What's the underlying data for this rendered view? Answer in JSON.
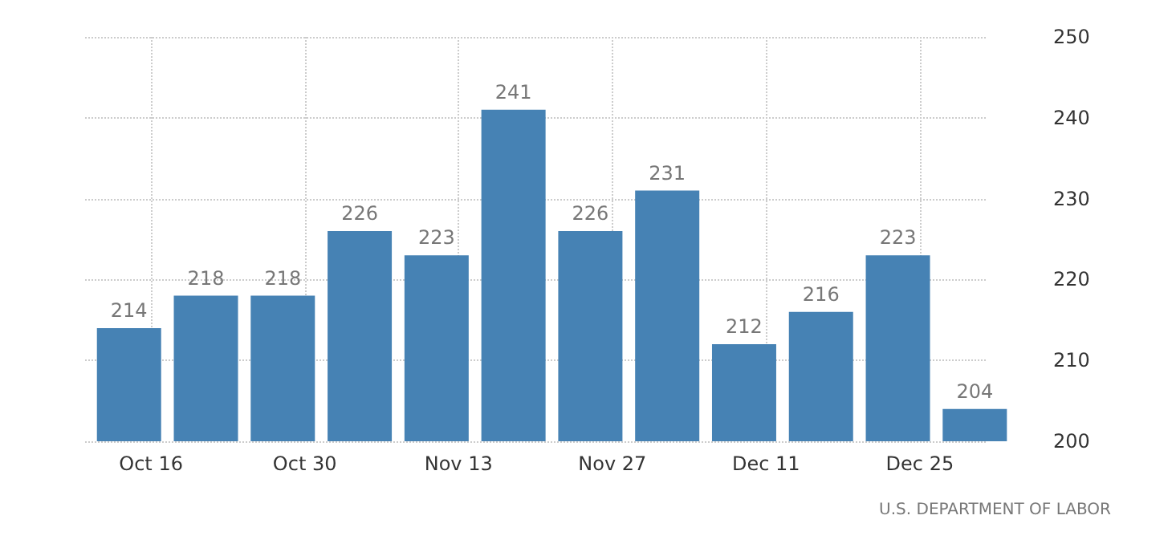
{
  "chart_data": {
    "type": "bar",
    "x": [
      "--10-14",
      "--10-21",
      "--10-28",
      "--11-04",
      "--11-11",
      "--11-18",
      "--11-25",
      "--12-02",
      "--12-09",
      "--12-16",
      "--12-23",
      "--12-30"
    ],
    "series": [
      {
        "color": "#4682b4",
        "values": [
          214,
          218,
          218,
          226,
          223,
          241,
          226,
          231,
          212,
          216,
          223,
          204
        ]
      }
    ],
    "xlim": [
      "--10-10",
      "--12-31"
    ],
    "xticks": [
      {
        "value": "--10-16",
        "label": "Oct 16"
      },
      {
        "value": "--10-30",
        "label": "Oct 30"
      },
      {
        "value": "--11-13",
        "label": "Nov 13"
      },
      {
        "value": "--11-27",
        "label": "Nov 27"
      },
      {
        "value": "--12-11",
        "label": "Dec 11"
      },
      {
        "value": "--12-25",
        "label": "Dec 25"
      }
    ],
    "ylim": [
      200,
      250
    ],
    "yticks": [
      200,
      210,
      220,
      230,
      240,
      250
    ],
    "grid": true,
    "data_labels": true,
    "annotations": [
      "U.S. DEPARTMENT OF LABOR"
    ]
  }
}
